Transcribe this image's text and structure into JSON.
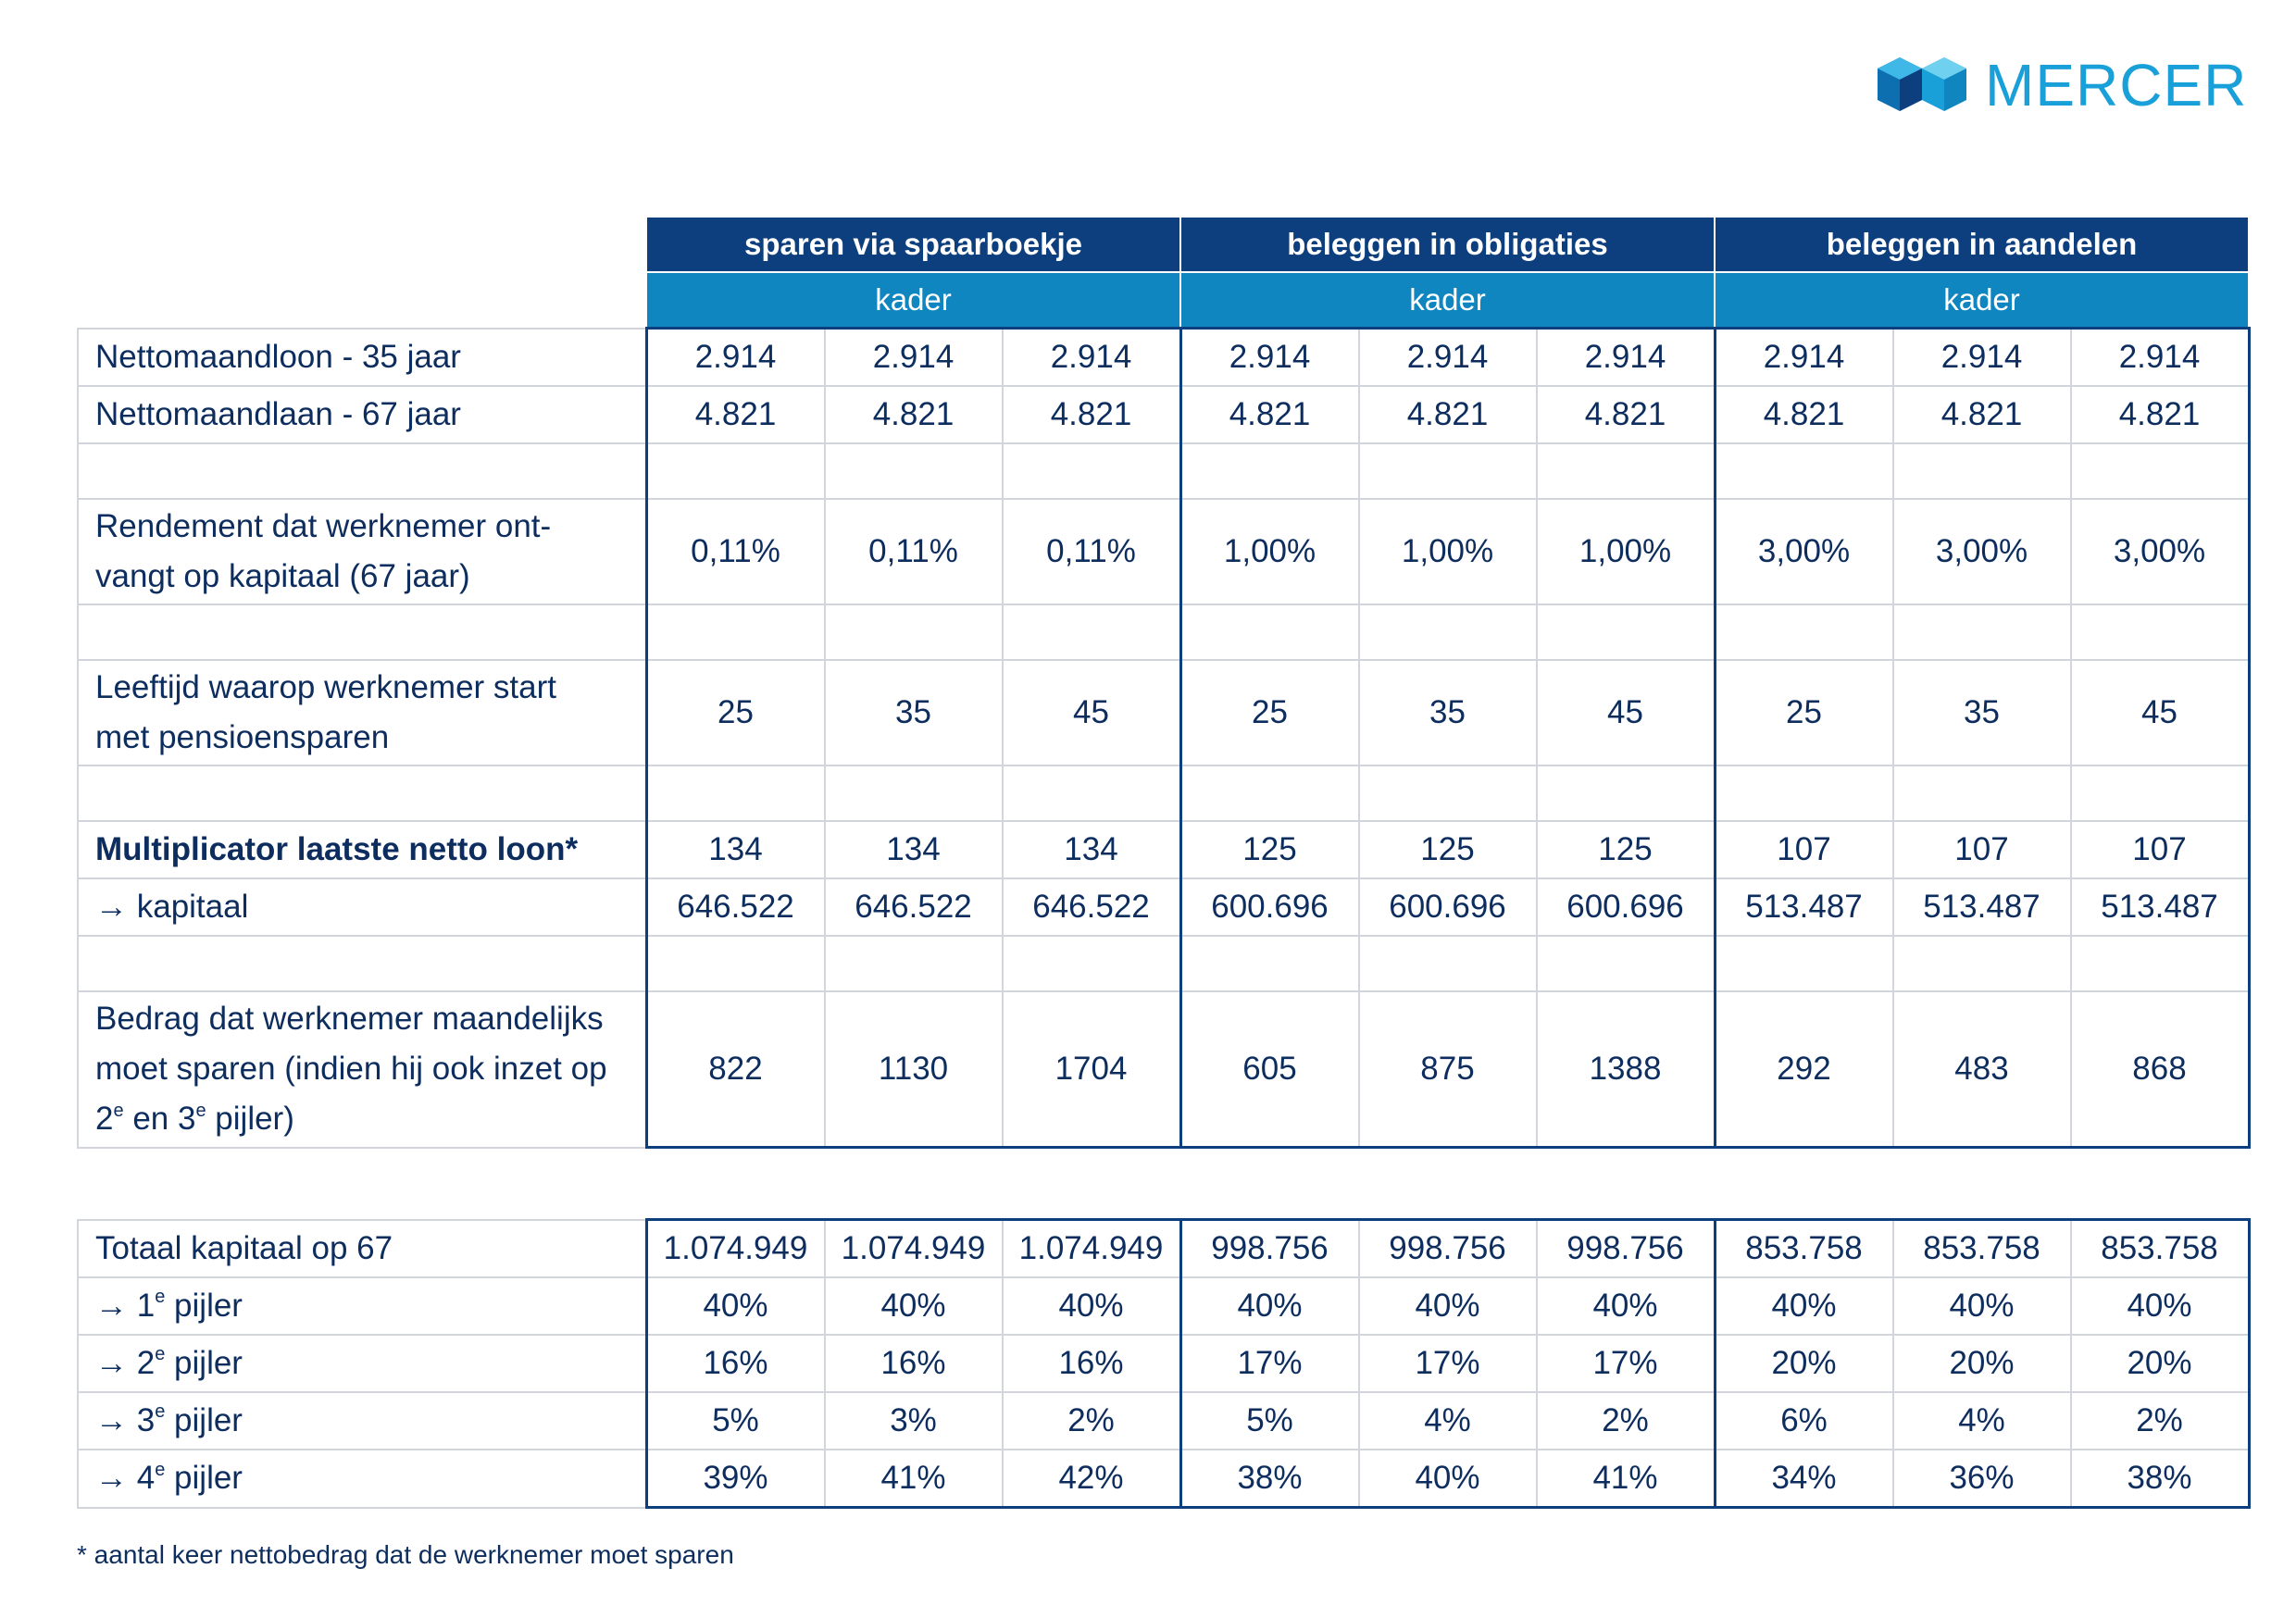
{
  "brand": {
    "name": "MERCER",
    "colors": {
      "navy": "#0d3f7e",
      "blue": "#0f86c0",
      "light": "#1aa0d8"
    }
  },
  "groups": [
    {
      "title": "sparen via spaarboekje",
      "sub": "kader"
    },
    {
      "title": "beleggen in obligaties",
      "sub": "kader"
    },
    {
      "title": "beleggen in aandelen",
      "sub": "kader"
    }
  ],
  "table1": {
    "rows": [
      {
        "label": "Nettomaandloon -  35 jaar",
        "values": [
          "2.914",
          "2.914",
          "2.914",
          "2.914",
          "2.914",
          "2.914",
          "2.914",
          "2.914",
          "2.914"
        ]
      },
      {
        "label": "Nettomaandlaan - 67 jaar",
        "values": [
          "4.821",
          "4.821",
          "4.821",
          "4.821",
          "4.821",
          "4.821",
          "4.821",
          "4.821",
          "4.821"
        ]
      },
      {
        "label": "Rendement dat werknemer ont-vangt op kapitaal (67 jaar)",
        "line1": "Rendement dat werknemer ont-",
        "line2": "vangt op kapitaal (67 jaar)",
        "values": [
          "0,11%",
          "0,11%",
          "0,11%",
          "1,00%",
          "1,00%",
          "1,00%",
          "3,00%",
          "3,00%",
          "3,00%"
        ]
      },
      {
        "label": "Leeftijd waarop werknemer start met pensioensparen",
        "line1": "Leeftijd waarop werknemer start",
        "line2": "met pensioensparen",
        "values": [
          "25",
          "35",
          "45",
          "25",
          "35",
          "45",
          "25",
          "35",
          "45"
        ]
      },
      {
        "label": "Multiplicator laatste netto loon*",
        "values": [
          "134",
          "134",
          "134",
          "125",
          "125",
          "125",
          "107",
          "107",
          "107"
        ]
      },
      {
        "label": "→ kapitaal",
        "values": [
          "646.522",
          "646.522",
          "646.522",
          "600.696",
          "600.696",
          "600.696",
          "513.487",
          "513.487",
          "513.487"
        ]
      },
      {
        "label": "Bedrag dat werknemer maandelijks moet sparen (indien hij ook inzet op 2e en 3e pijler)",
        "line1": "Bedrag dat werknemer maandelijks",
        "line2": "moet sparen (indien hij ook inzet op",
        "line3a": "2",
        "line3sup1": "e",
        "line3b": " en 3",
        "line3sup2": "e",
        "line3c": " pijler)",
        "values": [
          "822",
          "1130",
          "1704",
          "605",
          "875",
          "1388",
          "292",
          "483",
          "868"
        ]
      }
    ]
  },
  "table2": {
    "rows": [
      {
        "label": "Totaal kapitaal op 67",
        "values": [
          "1.074.949",
          "1.074.949",
          "1.074.949",
          "998.756",
          "998.756",
          "998.756",
          "853.758",
          "853.758",
          "853.758"
        ]
      },
      {
        "prefix": "→ 1",
        "sup": "e",
        "suffix": " pijler",
        "values": [
          "40%",
          "40%",
          "40%",
          "40%",
          "40%",
          "40%",
          "40%",
          "40%",
          "40%"
        ]
      },
      {
        "prefix": "→ 2",
        "sup": "e",
        "suffix": " pijler",
        "values": [
          "16%",
          "16%",
          "16%",
          "17%",
          "17%",
          "17%",
          "20%",
          "20%",
          "20%"
        ]
      },
      {
        "prefix": "→ 3",
        "sup": "e",
        "suffix": " pijler",
        "values": [
          "5%",
          "3%",
          "2%",
          "5%",
          "4%",
          "2%",
          "6%",
          "4%",
          "2%"
        ]
      },
      {
        "prefix": "→ 4",
        "sup": "e",
        "suffix": " pijler",
        "values": [
          "39%",
          "41%",
          "42%",
          "38%",
          "40%",
          "41%",
          "34%",
          "36%",
          "38%"
        ]
      }
    ]
  },
  "footnote": "* aantal keer nettobedrag dat de werknemer moet sparen"
}
